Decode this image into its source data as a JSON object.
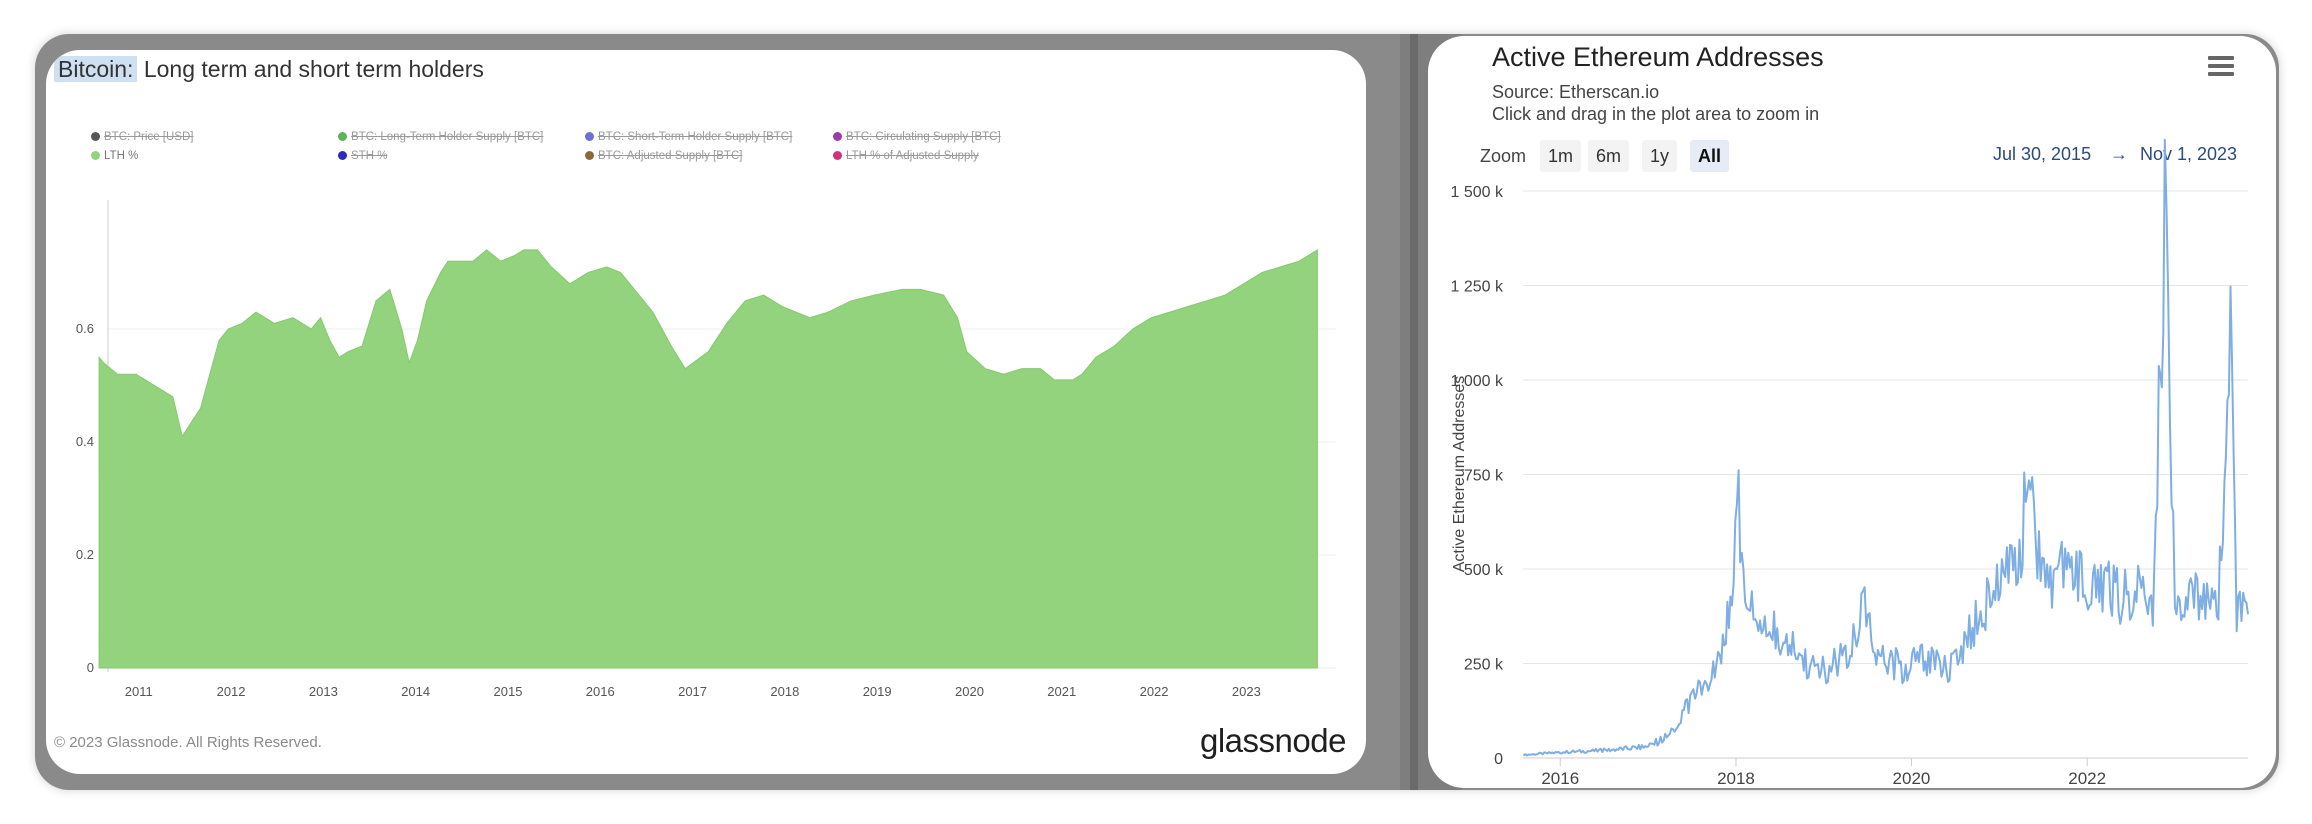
{
  "left_panel": {
    "title_highlight": "Bitcoin:",
    "title_rest": " Long term and short term holders",
    "copyright": "© 2023 Glassnode. All Rights Reserved.",
    "logo": "glassnode",
    "legend": [
      {
        "label": "BTC: Price [USD]",
        "color": "#555555",
        "active": false
      },
      {
        "label": "BTC: Long-Term Holder Supply [BTC]",
        "color": "#5ab55a",
        "active": false
      },
      {
        "label": "BTC: Short-Term Holder Supply [BTC]",
        "color": "#6f6fd6",
        "active": false
      },
      {
        "label": "BTC: Circulating Supply [BTC]",
        "color": "#9b3aa8",
        "active": false
      },
      {
        "label": "LTH %",
        "color": "#93d37d",
        "active": true
      },
      {
        "label": "STH %",
        "color": "#2b2bbf",
        "active": false
      },
      {
        "label": "BTC: Adjusted Supply [BTC]",
        "color": "#8a6a3a",
        "active": false
      },
      {
        "label": "LTH % of Adjusted Supply",
        "color": "#d0307d",
        "active": false
      }
    ]
  },
  "right_panel": {
    "title": "Active Ethereum Addresses",
    "source": "Source: Etherscan.io",
    "hint": "Click and drag in the plot area to zoom in",
    "zoom_label": "Zoom",
    "zoom_buttons": [
      "1m",
      "6m",
      "1y",
      "All"
    ],
    "zoom_active": "All",
    "range_from": "Jul 30, 2015",
    "range_arrow": "→",
    "range_to": "Nov 1, 2023",
    "menu_icon": "hamburger-menu-icon"
  },
  "chart_data": [
    {
      "type": "area",
      "title": "Bitcoin: Long term and short term holders",
      "series": [
        {
          "name": "LTH %",
          "color": "#93d37d"
        }
      ],
      "x_ticks": [
        "2011",
        "2012",
        "2013",
        "2014",
        "2015",
        "2016",
        "2017",
        "2018",
        "2019",
        "2020",
        "2021",
        "2022",
        "2023"
      ],
      "y_ticks": [
        "0",
        "0.2",
        "0.4",
        "0.6"
      ],
      "ylim": [
        0,
        0.8
      ],
      "grid": true,
      "x": [
        2010.6,
        2010.65,
        2010.8,
        2011.0,
        2011.2,
        2011.4,
        2011.5,
        2011.62,
        2011.7,
        2011.8,
        2011.9,
        2012.0,
        2012.15,
        2012.3,
        2012.5,
        2012.7,
        2012.9,
        2013.0,
        2013.1,
        2013.2,
        2013.3,
        2013.45,
        2013.6,
        2013.75,
        2013.88,
        2013.96,
        2014.05,
        2014.15,
        2014.3,
        2014.38,
        2014.5,
        2014.65,
        2014.8,
        2014.95,
        2015.1,
        2015.2,
        2015.35,
        2015.5,
        2015.7,
        2015.9,
        2016.1,
        2016.25,
        2016.4,
        2016.6,
        2016.8,
        2016.95,
        2017.2,
        2017.4,
        2017.6,
        2017.8,
        2018.0,
        2018.15,
        2018.3,
        2018.5,
        2018.75,
        2019.0,
        2019.3,
        2019.5,
        2019.75,
        2019.9,
        2020.0,
        2020.2,
        2020.4,
        2020.6,
        2020.8,
        2020.95,
        2021.05,
        2021.15,
        2021.25,
        2021.4,
        2021.6,
        2021.8,
        2022.0,
        2022.2,
        2022.4,
        2022.6,
        2022.8,
        2023.0,
        2023.2,
        2023.4,
        2023.6,
        2023.8
      ],
      "y": [
        0.55,
        0.54,
        0.52,
        0.52,
        0.5,
        0.48,
        0.41,
        0.44,
        0.46,
        0.52,
        0.58,
        0.6,
        0.61,
        0.63,
        0.61,
        0.62,
        0.6,
        0.62,
        0.58,
        0.55,
        0.56,
        0.57,
        0.65,
        0.67,
        0.6,
        0.54,
        0.58,
        0.65,
        0.7,
        0.72,
        0.72,
        0.72,
        0.74,
        0.72,
        0.73,
        0.74,
        0.74,
        0.71,
        0.68,
        0.7,
        0.71,
        0.7,
        0.67,
        0.63,
        0.57,
        0.53,
        0.56,
        0.61,
        0.65,
        0.66,
        0.64,
        0.63,
        0.62,
        0.63,
        0.65,
        0.66,
        0.67,
        0.67,
        0.66,
        0.62,
        0.56,
        0.53,
        0.52,
        0.53,
        0.53,
        0.51,
        0.51,
        0.51,
        0.52,
        0.55,
        0.57,
        0.6,
        0.62,
        0.63,
        0.64,
        0.65,
        0.66,
        0.68,
        0.7,
        0.71,
        0.72,
        0.74
      ]
    },
    {
      "type": "line",
      "title": "Active Ethereum Addresses",
      "ylabel": "Active Ethereum Addresses",
      "series": [
        {
          "name": "Active Ethereum Addresses",
          "color": "#7eaee3"
        }
      ],
      "x_ticks": [
        "2016",
        "2018",
        "2020",
        "2022"
      ],
      "y_ticks": [
        "0",
        "250 k",
        "500 k",
        "750 k",
        "1 000 k",
        "1 250 k",
        "1 500 k"
      ],
      "ylim": [
        0,
        1500000
      ],
      "grid": true,
      "x": [
        "2015-08-01",
        "2016-01-01",
        "2016-07-01",
        "2017-01-01",
        "2017-04-01",
        "2017-07-01",
        "2017-09-01",
        "2017-11-01",
        "2017-12-15",
        "2018-01-05",
        "2018-02-01",
        "2018-03-15",
        "2018-05-01",
        "2018-06-15",
        "2018-09-01",
        "2018-12-01",
        "2019-02-01",
        "2019-04-01",
        "2019-06-20",
        "2019-08-01",
        "2019-10-01",
        "2019-12-01",
        "2020-02-01",
        "2020-04-01",
        "2020-06-01",
        "2020-08-15",
        "2020-10-01",
        "2020-12-01",
        "2021-02-01",
        "2021-04-01",
        "2021-05-10",
        "2021-06-01",
        "2021-08-01",
        "2021-10-01",
        "2021-12-01",
        "2022-02-01",
        "2022-04-01",
        "2022-06-01",
        "2022-08-01",
        "2022-10-01",
        "2022-11-20",
        "2023-01-01",
        "2023-03-01",
        "2023-05-01",
        "2023-07-01",
        "2023-08-20",
        "2023-09-15",
        "2023-11-01"
      ],
      "y": [
        8000,
        15000,
        20000,
        30000,
        60000,
        160000,
        200000,
        250000,
        450000,
        720000,
        500000,
        350000,
        320000,
        330000,
        280000,
        230000,
        240000,
        270000,
        420000,
        280000,
        260000,
        230000,
        270000,
        250000,
        230000,
        300000,
        380000,
        430000,
        550000,
        560000,
        810000,
        580000,
        470000,
        520000,
        480000,
        440000,
        460000,
        420000,
        470000,
        380000,
        1460000,
        450000,
        420000,
        410000,
        390000,
        1100000,
        400000,
        380000
      ]
    }
  ]
}
